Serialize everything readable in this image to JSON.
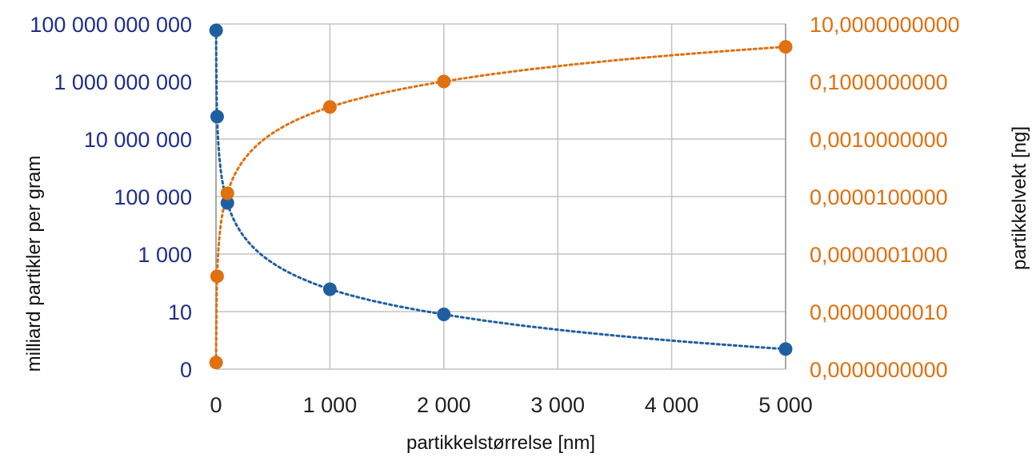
{
  "chart_data": {
    "type": "scatter",
    "xlabel": "partikkelstørrelse [nm]",
    "ylabel_left": "milliard partikler per gram",
    "ylabel_right": "partikkelvekt [ng]",
    "x_tick_labels": [
      "0",
      "1 000",
      "2 000",
      "3 000",
      "4 000",
      "5 000"
    ],
    "x_tick_positions": [
      0,
      1000,
      2000,
      3000,
      4000,
      5000
    ],
    "left_tick_labels": [
      "0",
      "10",
      "1 000",
      "100 000",
      "10 000 000",
      "1 000 000 000",
      "100 000 000 000"
    ],
    "left_scale": "log",
    "right_tick_labels": [
      "0,0000000000",
      "0,0000000010",
      "0,0000001000",
      "0,0000100000",
      "0,0010000000",
      "0,1000000000",
      "10,0000000000"
    ],
    "right_scale": "log",
    "grid": true,
    "series": [
      {
        "axis": "left",
        "color": "#1f5fa0",
        "trend": "dotted",
        "points": [
          {
            "x": 1,
            "y": 60000000000
          },
          {
            "x": 10,
            "y": 60000000
          },
          {
            "x": 100,
            "y": 60000
          },
          {
            "x": 1000,
            "y": 60
          },
          {
            "x": 2000,
            "y": 8
          },
          {
            "x": 5000,
            "y": 0.5
          }
        ]
      },
      {
        "axis": "right",
        "color": "#e07010",
        "trend": "dotted",
        "points": [
          {
            "x": 1,
            "y": 1.7e-11
          },
          {
            "x": 10,
            "y": 1.7e-08
          },
          {
            "x": 100,
            "y": 1.3e-05
          },
          {
            "x": 1000,
            "y": 0.013
          },
          {
            "x": 2000,
            "y": 0.1
          },
          {
            "x": 5000,
            "y": 1.6
          }
        ]
      }
    ]
  }
}
